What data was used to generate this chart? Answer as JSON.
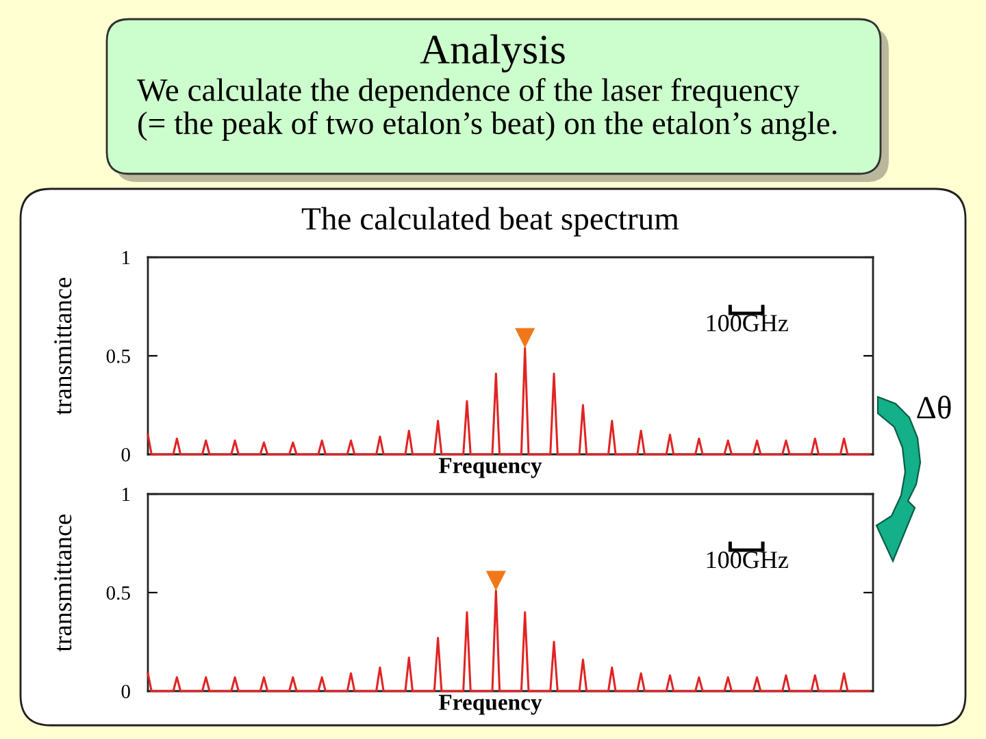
{
  "chart_data": [
    {
      "type": "line",
      "title": "Analysis",
      "subtitle": "We calculate the dependence of the laser frequency\n(= the peak of two etalon’s beat) on the etalon’s angle.",
      "xlabel": "Frequency",
      "ylabel": "transmittance",
      "annotations": [
        "The calculated beat spectrum",
        "100GHz",
        "Δθ"
      ],
      "categories": [
        null,
        null,
        null,
        null,
        null,
        null,
        null,
        null,
        null,
        null,
        null,
        null,
        null,
        null,
        null,
        null,
        null,
        null,
        null,
        null,
        null,
        null,
        null,
        null,
        null,
        null,
        null,
        null,
        null,
        null,
        null,
        null,
        null,
        null,
        null,
        null,
        null,
        null,
        null,
        null,
        null,
        null,
        null,
        null,
        null,
        null,
        null,
        null,
        null,
        null,
        null,
        null,
        null,
        null,
        null,
        null,
        null,
        null,
        null,
        null,
        null,
        null,
        null,
        null,
        null,
        null,
        null,
        null,
        null,
        null,
        null,
        null,
        null,
        null,
        null,
        null,
        null,
        null,
        null,
        null,
        null,
        null,
        null,
        null,
        null,
        null,
        null,
        null,
        null,
        null,
        null,
        null,
        null,
        null,
        null,
        null,
        null,
        null,
        null,
        null,
        null,
        null,
        null,
        null,
        null,
        null,
        null,
        null,
        null,
        null,
        null,
        null,
        null,
        null,
        null,
        null,
        null,
        null,
        null,
        null,
        null,
        null,
        null,
        null,
        null,
        null,
        null,
        null,
        null,
        null,
        null,
        null,
        null,
        null,
        null,
        null,
        null,
        null,
        null,
        null,
        null,
        null,
        null,
        null,
        null,
        null,
        null,
        null,
        null,
        null,
        null,
        null,
        null,
        null,
        null,
        null,
        null,
        null,
        null,
        null,
        null,
        null,
        null,
        null,
        null,
        null,
        null,
        null,
        null,
        null,
        null,
        null,
        null,
        null,
        null,
        null,
        null,
        null,
        null,
        null,
        null,
        null,
        null,
        null,
        null,
        null,
        null,
        null,
        null,
        null,
        null,
        null,
        null,
        null,
        null,
        null,
        null,
        null,
        null,
        null
      ],
      "series": [
        {
          "color": "#e02424",
          "values": [
            0.1,
            0,
            0,
            0,
            0,
            0,
            0,
            0,
            0.08,
            0,
            0,
            0,
            0,
            0,
            0,
            0,
            0.07,
            0,
            0,
            0,
            0,
            0,
            0,
            0,
            0.07,
            0,
            0,
            0,
            0,
            0,
            0,
            0,
            0.06,
            0,
            0,
            0,
            0,
            0,
            0,
            0,
            0.06,
            0,
            0,
            0,
            0,
            0,
            0,
            0,
            0.07,
            0,
            0,
            0,
            0,
            0,
            0,
            0,
            0.07,
            0,
            0,
            0,
            0,
            0,
            0,
            0,
            0.09,
            0,
            0,
            0,
            0,
            0,
            0,
            0,
            0.12,
            0,
            0,
            0,
            0,
            0,
            0,
            0,
            0.17,
            0,
            0,
            0,
            0,
            0,
            0,
            0,
            0.27,
            0,
            0,
            0,
            0,
            0,
            0,
            0,
            0.41,
            0,
            0,
            0,
            0,
            0,
            0,
            0,
            0.54,
            0,
            0,
            0,
            0,
            0,
            0,
            0,
            0.41,
            0,
            0,
            0,
            0,
            0,
            0,
            0,
            0.25,
            0,
            0,
            0,
            0,
            0,
            0,
            0,
            0.17,
            0,
            0,
            0,
            0,
            0,
            0,
            0,
            0.12,
            0,
            0,
            0,
            0,
            0,
            0,
            0,
            0.1,
            0,
            0,
            0,
            0,
            0,
            0,
            0,
            0.08,
            0,
            0,
            0,
            0,
            0,
            0,
            0,
            0.07,
            0,
            0,
            0,
            0,
            0,
            0,
            0,
            0.07,
            0,
            0,
            0,
            0,
            0,
            0,
            0,
            0.07,
            0,
            0,
            0,
            0,
            0,
            0,
            0,
            0.08,
            0,
            0,
            0,
            0,
            0,
            0,
            0,
            0.08,
            0,
            0,
            0,
            0,
            0,
            0,
            0
          ]
        },
        {
          "type": "scatter",
          "color": "#f07818",
          "marker": "triangle",
          "values": [
            null,
            null,
            null,
            null,
            null,
            null,
            null,
            null,
            null,
            null,
            null,
            null,
            null,
            null,
            null,
            null,
            null,
            null,
            null,
            null,
            null,
            null,
            null,
            null,
            null,
            null,
            null,
            null,
            null,
            null,
            null,
            null,
            null,
            null,
            null,
            null,
            null,
            null,
            null,
            null,
            null,
            null,
            null,
            null,
            null,
            null,
            null,
            null,
            null,
            null,
            null,
            null,
            null,
            null,
            null,
            null,
            null,
            null,
            null,
            null,
            null,
            null,
            null,
            null,
            null,
            null,
            null,
            null,
            null,
            null,
            null,
            null,
            null,
            null,
            null,
            null,
            null,
            null,
            null,
            null,
            null,
            null,
            null,
            null,
            null,
            null,
            null,
            null,
            null,
            null,
            null,
            null,
            null,
            null,
            null,
            null,
            null,
            null,
            null,
            null,
            null,
            null,
            null,
            null,
            0.59,
            null,
            null,
            null,
            null,
            null,
            null,
            null,
            null,
            null,
            null,
            null,
            null,
            null,
            null,
            null,
            null,
            null,
            null,
            null,
            null,
            null,
            null,
            null,
            null,
            null,
            null,
            null,
            null,
            null,
            null,
            null,
            null,
            null,
            null,
            null,
            null,
            null,
            null,
            null,
            null,
            null,
            null,
            null,
            null,
            null,
            null,
            null,
            null,
            null,
            null,
            null,
            null,
            null,
            null,
            null,
            null,
            null,
            null,
            null,
            null,
            null,
            null,
            null,
            null,
            null,
            null,
            null,
            null,
            null,
            null,
            null,
            null,
            null,
            null,
            null,
            null,
            null,
            null,
            null,
            null,
            null,
            null,
            null,
            null,
            null,
            null,
            null,
            null,
            null,
            null,
            null,
            null,
            null,
            null,
            null
          ]
        }
      ],
      "ylim": [
        0,
        1
      ],
      "yticks": [
        0,
        0.5,
        1
      ]
    },
    {
      "type": "line",
      "xlabel": "Frequency",
      "ylabel": "transmittance",
      "annotations": [
        "100GHz"
      ],
      "categories": [
        null,
        null,
        null,
        null,
        null,
        null,
        null,
        null,
        null,
        null,
        null,
        null,
        null,
        null,
        null,
        null,
        null,
        null,
        null,
        null,
        null,
        null,
        null,
        null,
        null,
        null,
        null,
        null,
        null,
        null,
        null,
        null,
        null,
        null,
        null,
        null,
        null,
        null,
        null,
        null,
        null,
        null,
        null,
        null,
        null,
        null,
        null,
        null,
        null,
        null,
        null,
        null,
        null,
        null,
        null,
        null,
        null,
        null,
        null,
        null,
        null,
        null,
        null,
        null,
        null,
        null,
        null,
        null,
        null,
        null,
        null,
        null,
        null,
        null,
        null,
        null,
        null,
        null,
        null,
        null,
        null,
        null,
        null,
        null,
        null,
        null,
        null,
        null,
        null,
        null,
        null,
        null,
        null,
        null,
        null,
        null,
        null,
        null,
        null,
        null,
        null,
        null,
        null,
        null,
        null,
        null,
        null,
        null,
        null,
        null,
        null,
        null,
        null,
        null,
        null,
        null,
        null,
        null,
        null,
        null,
        null,
        null,
        null,
        null,
        null,
        null,
        null,
        null,
        null,
        null,
        null,
        null,
        null,
        null,
        null,
        null,
        null,
        null,
        null,
        null,
        null,
        null,
        null,
        null,
        null,
        null,
        null,
        null,
        null,
        null,
        null,
        null,
        null,
        null,
        null,
        null,
        null,
        null,
        null,
        null,
        null,
        null,
        null,
        null,
        null,
        null,
        null,
        null,
        null,
        null,
        null,
        null,
        null,
        null,
        null,
        null,
        null,
        null,
        null,
        null,
        null,
        null,
        null,
        null,
        null,
        null,
        null,
        null,
        null,
        null,
        null,
        null,
        null,
        null,
        null,
        null,
        null,
        null,
        null,
        null
      ],
      "series": [
        {
          "color": "#e02424",
          "values": [
            0.09,
            0,
            0,
            0,
            0,
            0,
            0,
            0,
            0.07,
            0,
            0,
            0,
            0,
            0,
            0,
            0,
            0.07,
            0,
            0,
            0,
            0,
            0,
            0,
            0,
            0.07,
            0,
            0,
            0,
            0,
            0,
            0,
            0,
            0.07,
            0,
            0,
            0,
            0,
            0,
            0,
            0,
            0.07,
            0,
            0,
            0,
            0,
            0,
            0,
            0,
            0.07,
            0,
            0,
            0,
            0,
            0,
            0,
            0,
            0.09,
            0,
            0,
            0,
            0,
            0,
            0,
            0,
            0.12,
            0,
            0,
            0,
            0,
            0,
            0,
            0,
            0.17,
            0,
            0,
            0,
            0,
            0,
            0,
            0,
            0.27,
            0,
            0,
            0,
            0,
            0,
            0,
            0,
            0.4,
            0,
            0,
            0,
            0,
            0,
            0,
            0,
            0.51,
            0,
            0,
            0,
            0,
            0,
            0,
            0,
            0.4,
            0,
            0,
            0,
            0,
            0,
            0,
            0,
            0.25,
            0,
            0,
            0,
            0,
            0,
            0,
            0,
            0.16,
            0,
            0,
            0,
            0,
            0,
            0,
            0,
            0.12,
            0,
            0,
            0,
            0,
            0,
            0,
            0,
            0.09,
            0,
            0,
            0,
            0,
            0,
            0,
            0,
            0.08,
            0,
            0,
            0,
            0,
            0,
            0,
            0,
            0.07,
            0,
            0,
            0,
            0,
            0,
            0,
            0,
            0.07,
            0,
            0,
            0,
            0,
            0,
            0,
            0,
            0.07,
            0,
            0,
            0,
            0,
            0,
            0,
            0,
            0.08,
            0,
            0,
            0,
            0,
            0,
            0,
            0,
            0.08,
            0,
            0,
            0,
            0,
            0,
            0,
            0,
            0.09,
            0,
            0,
            0,
            0,
            0,
            0,
            0
          ]
        },
        {
          "type": "scatter",
          "color": "#f07818",
          "marker": "triangle",
          "values": [
            null,
            null,
            null,
            null,
            null,
            null,
            null,
            null,
            null,
            null,
            null,
            null,
            null,
            null,
            null,
            null,
            null,
            null,
            null,
            null,
            null,
            null,
            null,
            null,
            null,
            null,
            null,
            null,
            null,
            null,
            null,
            null,
            null,
            null,
            null,
            null,
            null,
            null,
            null,
            null,
            null,
            null,
            null,
            null,
            null,
            null,
            null,
            null,
            null,
            null,
            null,
            null,
            null,
            null,
            null,
            null,
            null,
            null,
            null,
            null,
            null,
            null,
            null,
            null,
            null,
            null,
            null,
            null,
            null,
            null,
            null,
            null,
            null,
            null,
            null,
            null,
            null,
            null,
            null,
            null,
            null,
            null,
            null,
            null,
            null,
            null,
            null,
            null,
            null,
            null,
            null,
            null,
            null,
            null,
            null,
            null,
            0.56,
            null,
            null,
            null,
            null,
            null,
            null,
            null,
            null,
            null,
            null,
            null,
            null,
            null,
            null,
            null,
            null,
            null,
            null,
            null,
            null,
            null,
            null,
            null,
            null,
            null,
            null,
            null,
            null,
            null,
            null,
            null,
            null,
            null,
            null,
            null,
            null,
            null,
            null,
            null,
            null,
            null,
            null,
            null,
            null,
            null,
            null,
            null,
            null,
            null,
            null,
            null,
            null,
            null,
            null,
            null,
            null,
            null,
            null,
            null,
            null,
            null,
            null,
            null,
            null,
            null,
            null,
            null,
            null,
            null,
            null,
            null,
            null,
            null,
            null,
            null,
            null,
            null,
            null,
            null,
            null,
            null,
            null,
            null,
            null,
            null,
            null,
            null,
            null,
            null,
            null,
            null,
            null,
            null,
            null,
            null,
            null,
            null,
            null,
            null,
            null,
            null,
            null,
            null
          ]
        }
      ],
      "ylim": [
        0,
        1
      ],
      "yticks": [
        0,
        0.5,
        1
      ]
    }
  ]
}
